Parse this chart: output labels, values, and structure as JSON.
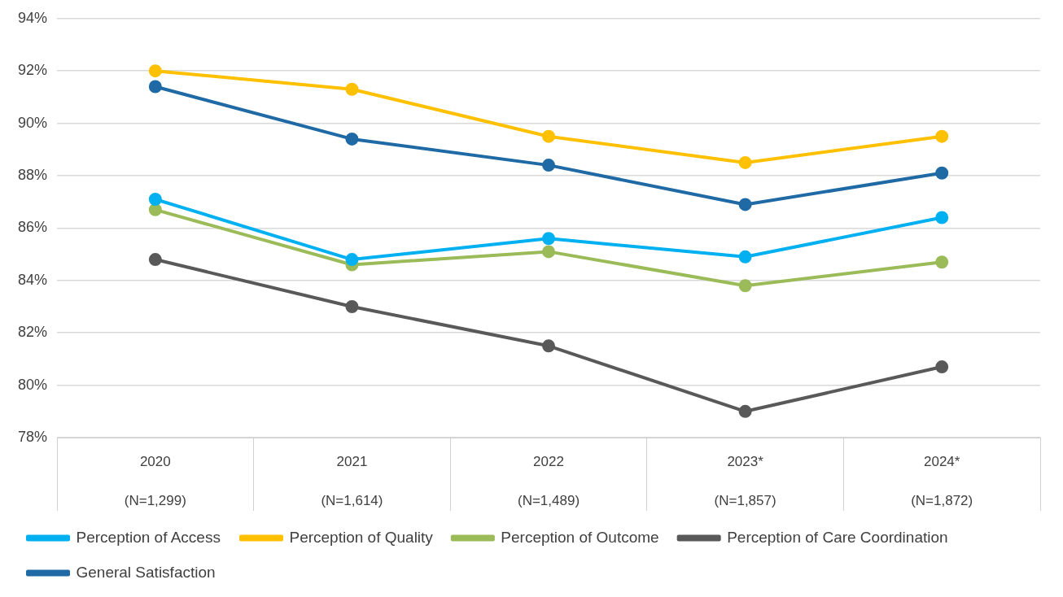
{
  "chart_data": {
    "type": "line",
    "categories": [
      "2020\n(N=1,299)",
      "2021\n(N=1,614)",
      "2022\n(N=1,489)",
      "2023*\n(N=1,857)",
      "2024*\n(N=1,872)"
    ],
    "series": [
      {
        "name": "Perception of Access",
        "color": "#00b0f0",
        "values": [
          87.1,
          84.8,
          85.6,
          84.9,
          86.4
        ]
      },
      {
        "name": "Perception of Quality",
        "color": "#ffc000",
        "values": [
          92.0,
          91.3,
          89.5,
          88.5,
          89.5
        ]
      },
      {
        "name": "Perception of Outcome",
        "color": "#9bbb59",
        "values": [
          86.7,
          84.6,
          85.1,
          83.8,
          84.7
        ]
      },
      {
        "name": "Perception of Care Coordination",
        "color": "#595959",
        "values": [
          84.8,
          83.0,
          81.5,
          79.0,
          80.7
        ]
      },
      {
        "name": "General Satisfaction",
        "color": "#1f6aa5",
        "values": [
          91.4,
          89.4,
          88.4,
          86.9,
          88.1
        ]
      }
    ],
    "ylim": [
      78,
      94
    ],
    "yticks": [
      {
        "value": 78,
        "label": "78%"
      },
      {
        "value": 80,
        "label": "80%"
      },
      {
        "value": 82,
        "label": "82%"
      },
      {
        "value": 84,
        "label": "84%"
      },
      {
        "value": 86,
        "label": "86%"
      },
      {
        "value": 88,
        "label": "88%"
      },
      {
        "value": 90,
        "label": "90%"
      },
      {
        "value": 92,
        "label": "92%"
      },
      {
        "value": 94,
        "label": "94%"
      }
    ],
    "grid": "y",
    "legend": "bottom",
    "marker": "circle",
    "line_style": "solid"
  }
}
